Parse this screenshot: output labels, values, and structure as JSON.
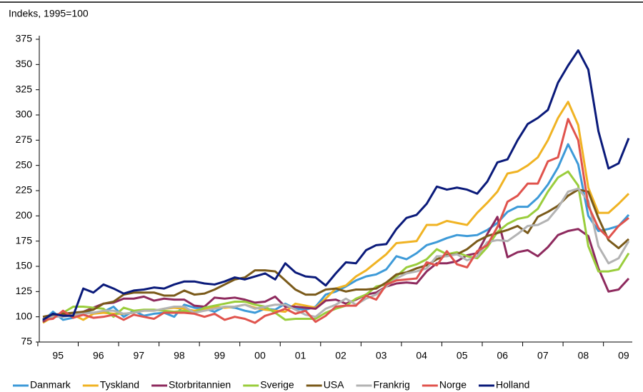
{
  "chart_data": {
    "type": "line",
    "y_label": "Indeks, 1995=100",
    "categories": [
      null,
      "95",
      null,
      null,
      null,
      "96",
      null,
      null,
      null,
      "97",
      null,
      null,
      null,
      "98",
      null,
      null,
      null,
      "99",
      null,
      null,
      null,
      "00",
      null,
      null,
      null,
      "01",
      null,
      null,
      null,
      "02",
      null,
      null,
      null,
      "03",
      null,
      null,
      null,
      "04",
      null,
      null,
      null,
      "05",
      null,
      null,
      null,
      "06",
      null,
      null,
      null,
      "07",
      null,
      null,
      null,
      "08",
      null,
      null,
      null,
      "09",
      null
    ],
    "ylim": [
      75,
      375
    ],
    "yticks": [
      75,
      100,
      125,
      150,
      175,
      200,
      225,
      250,
      275,
      300,
      325,
      350,
      375
    ],
    "grid": false,
    "series": [
      {
        "name": "Danmark",
        "color": "#3d9ad8",
        "values": [
          96,
          105,
          97,
          99,
          104,
          104,
          105,
          110,
          100,
          106,
          101,
          103,
          104,
          100,
          112,
          109,
          108,
          105,
          110,
          109,
          106,
          104,
          108,
          107,
          113,
          108,
          107,
          110,
          122,
          125,
          130,
          136,
          140,
          142,
          147,
          160,
          157,
          163,
          171,
          174,
          178,
          181,
          180,
          181,
          186,
          193,
          204,
          209,
          209,
          218,
          231,
          248,
          271,
          251,
          200,
          185,
          187,
          190,
          201
        ]
      },
      {
        "name": "Tyskland",
        "color": "#f0b323",
        "values": [
          94,
          100,
          101,
          102,
          97,
          103,
          104,
          103,
          103,
          104,
          106,
          106,
          108,
          109,
          108,
          106,
          108,
          110,
          109,
          110,
          112,
          109,
          107,
          106,
          105,
          113,
          111,
          109,
          118,
          128,
          131,
          140,
          146,
          154,
          162,
          173,
          174,
          175,
          191,
          191,
          195,
          193,
          191,
          203,
          213,
          224,
          242,
          244,
          250,
          258,
          275,
          297,
          313,
          290,
          228,
          203,
          203,
          212,
          222
        ]
      },
      {
        "name": "Storbritannien",
        "color": "#8e2a5e",
        "values": [
          95,
          101,
          101,
          103,
          105,
          109,
          113,
          114,
          118,
          118,
          120,
          116,
          118,
          117,
          117,
          111,
          110,
          119,
          118,
          119,
          117,
          114,
          115,
          120,
          110,
          110,
          109,
          108,
          116,
          117,
          113,
          117,
          122,
          124,
          130,
          133,
          134,
          133,
          145,
          153,
          153,
          155,
          161,
          163,
          182,
          199,
          159,
          164,
          166,
          160,
          169,
          181,
          185,
          187,
          180,
          148,
          125,
          127,
          138
        ]
      },
      {
        "name": "Sverige",
        "color": "#9acd3c",
        "values": [
          97,
          100,
          104,
          110,
          110,
          109,
          108,
          100,
          109,
          106,
          107,
          107,
          106,
          105,
          106,
          104,
          109,
          111,
          113,
          115,
          115,
          112,
          110,
          104,
          97,
          98,
          98,
          98,
          104,
          108,
          111,
          118,
          122,
          130,
          132,
          140,
          149,
          152,
          157,
          167,
          162,
          164,
          160,
          158,
          169,
          184,
          192,
          197,
          199,
          207,
          224,
          238,
          244,
          230,
          170,
          145,
          145,
          147,
          163
        ]
      },
      {
        "name": "USA",
        "color": "#7a5a1a",
        "values": [
          100,
          102,
          103,
          104,
          105,
          107,
          113,
          115,
          122,
          124,
          124,
          124,
          121,
          121,
          126,
          122,
          123,
          127,
          132,
          137,
          139,
          146,
          146,
          145,
          136,
          127,
          122,
          122,
          127,
          128,
          125,
          127,
          127,
          128,
          134,
          142,
          144,
          148,
          151,
          157,
          161,
          162,
          167,
          175,
          180,
          183,
          186,
          190,
          183,
          199,
          204,
          210,
          220,
          226,
          224,
          198,
          176,
          168,
          177
        ]
      },
      {
        "name": "Frankrig",
        "color": "#b3b3b3",
        "values": [
          98,
          100,
          100,
          102,
          103,
          104,
          106,
          106,
          103,
          104,
          106,
          106,
          108,
          110,
          110,
          104,
          106,
          108,
          110,
          110,
          112,
          108,
          110,
          112,
          112,
          107,
          102,
          100,
          108,
          112,
          118,
          112,
          118,
          122,
          130,
          138,
          143,
          145,
          148,
          160,
          160,
          162,
          156,
          160,
          174,
          176,
          175,
          182,
          190,
          191,
          196,
          208,
          224,
          227,
          215,
          170,
          153,
          158,
          175
        ]
      },
      {
        "name": "Norge",
        "color": "#e0534d",
        "values": [
          97,
          98,
          106,
          99,
          102,
          99,
          100,
          102,
          97,
          102,
          100,
          98,
          104,
          104,
          104,
          103,
          100,
          103,
          97,
          100,
          98,
          94,
          101,
          104,
          108,
          103,
          106,
          95,
          101,
          110,
          111,
          111,
          121,
          117,
          132,
          136,
          137,
          138,
          154,
          151,
          165,
          152,
          149,
          165,
          171,
          189,
          214,
          220,
          232,
          232,
          254,
          258,
          296,
          275,
          210,
          188,
          178,
          190,
          198
        ]
      },
      {
        "name": "Holland",
        "color": "#0a1a7a",
        "values": [
          97,
          103,
          101,
          101,
          128,
          124,
          132,
          128,
          123,
          126,
          127,
          129,
          128,
          132,
          135,
          135,
          133,
          132,
          135,
          139,
          137,
          140,
          143,
          137,
          153,
          144,
          140,
          139,
          131,
          143,
          154,
          153,
          166,
          171,
          172,
          187,
          198,
          201,
          212,
          229,
          226,
          228,
          226,
          222,
          234,
          253,
          256,
          275,
          291,
          297,
          305,
          332,
          349,
          364,
          345,
          284,
          247,
          252,
          277
        ]
      }
    ]
  }
}
